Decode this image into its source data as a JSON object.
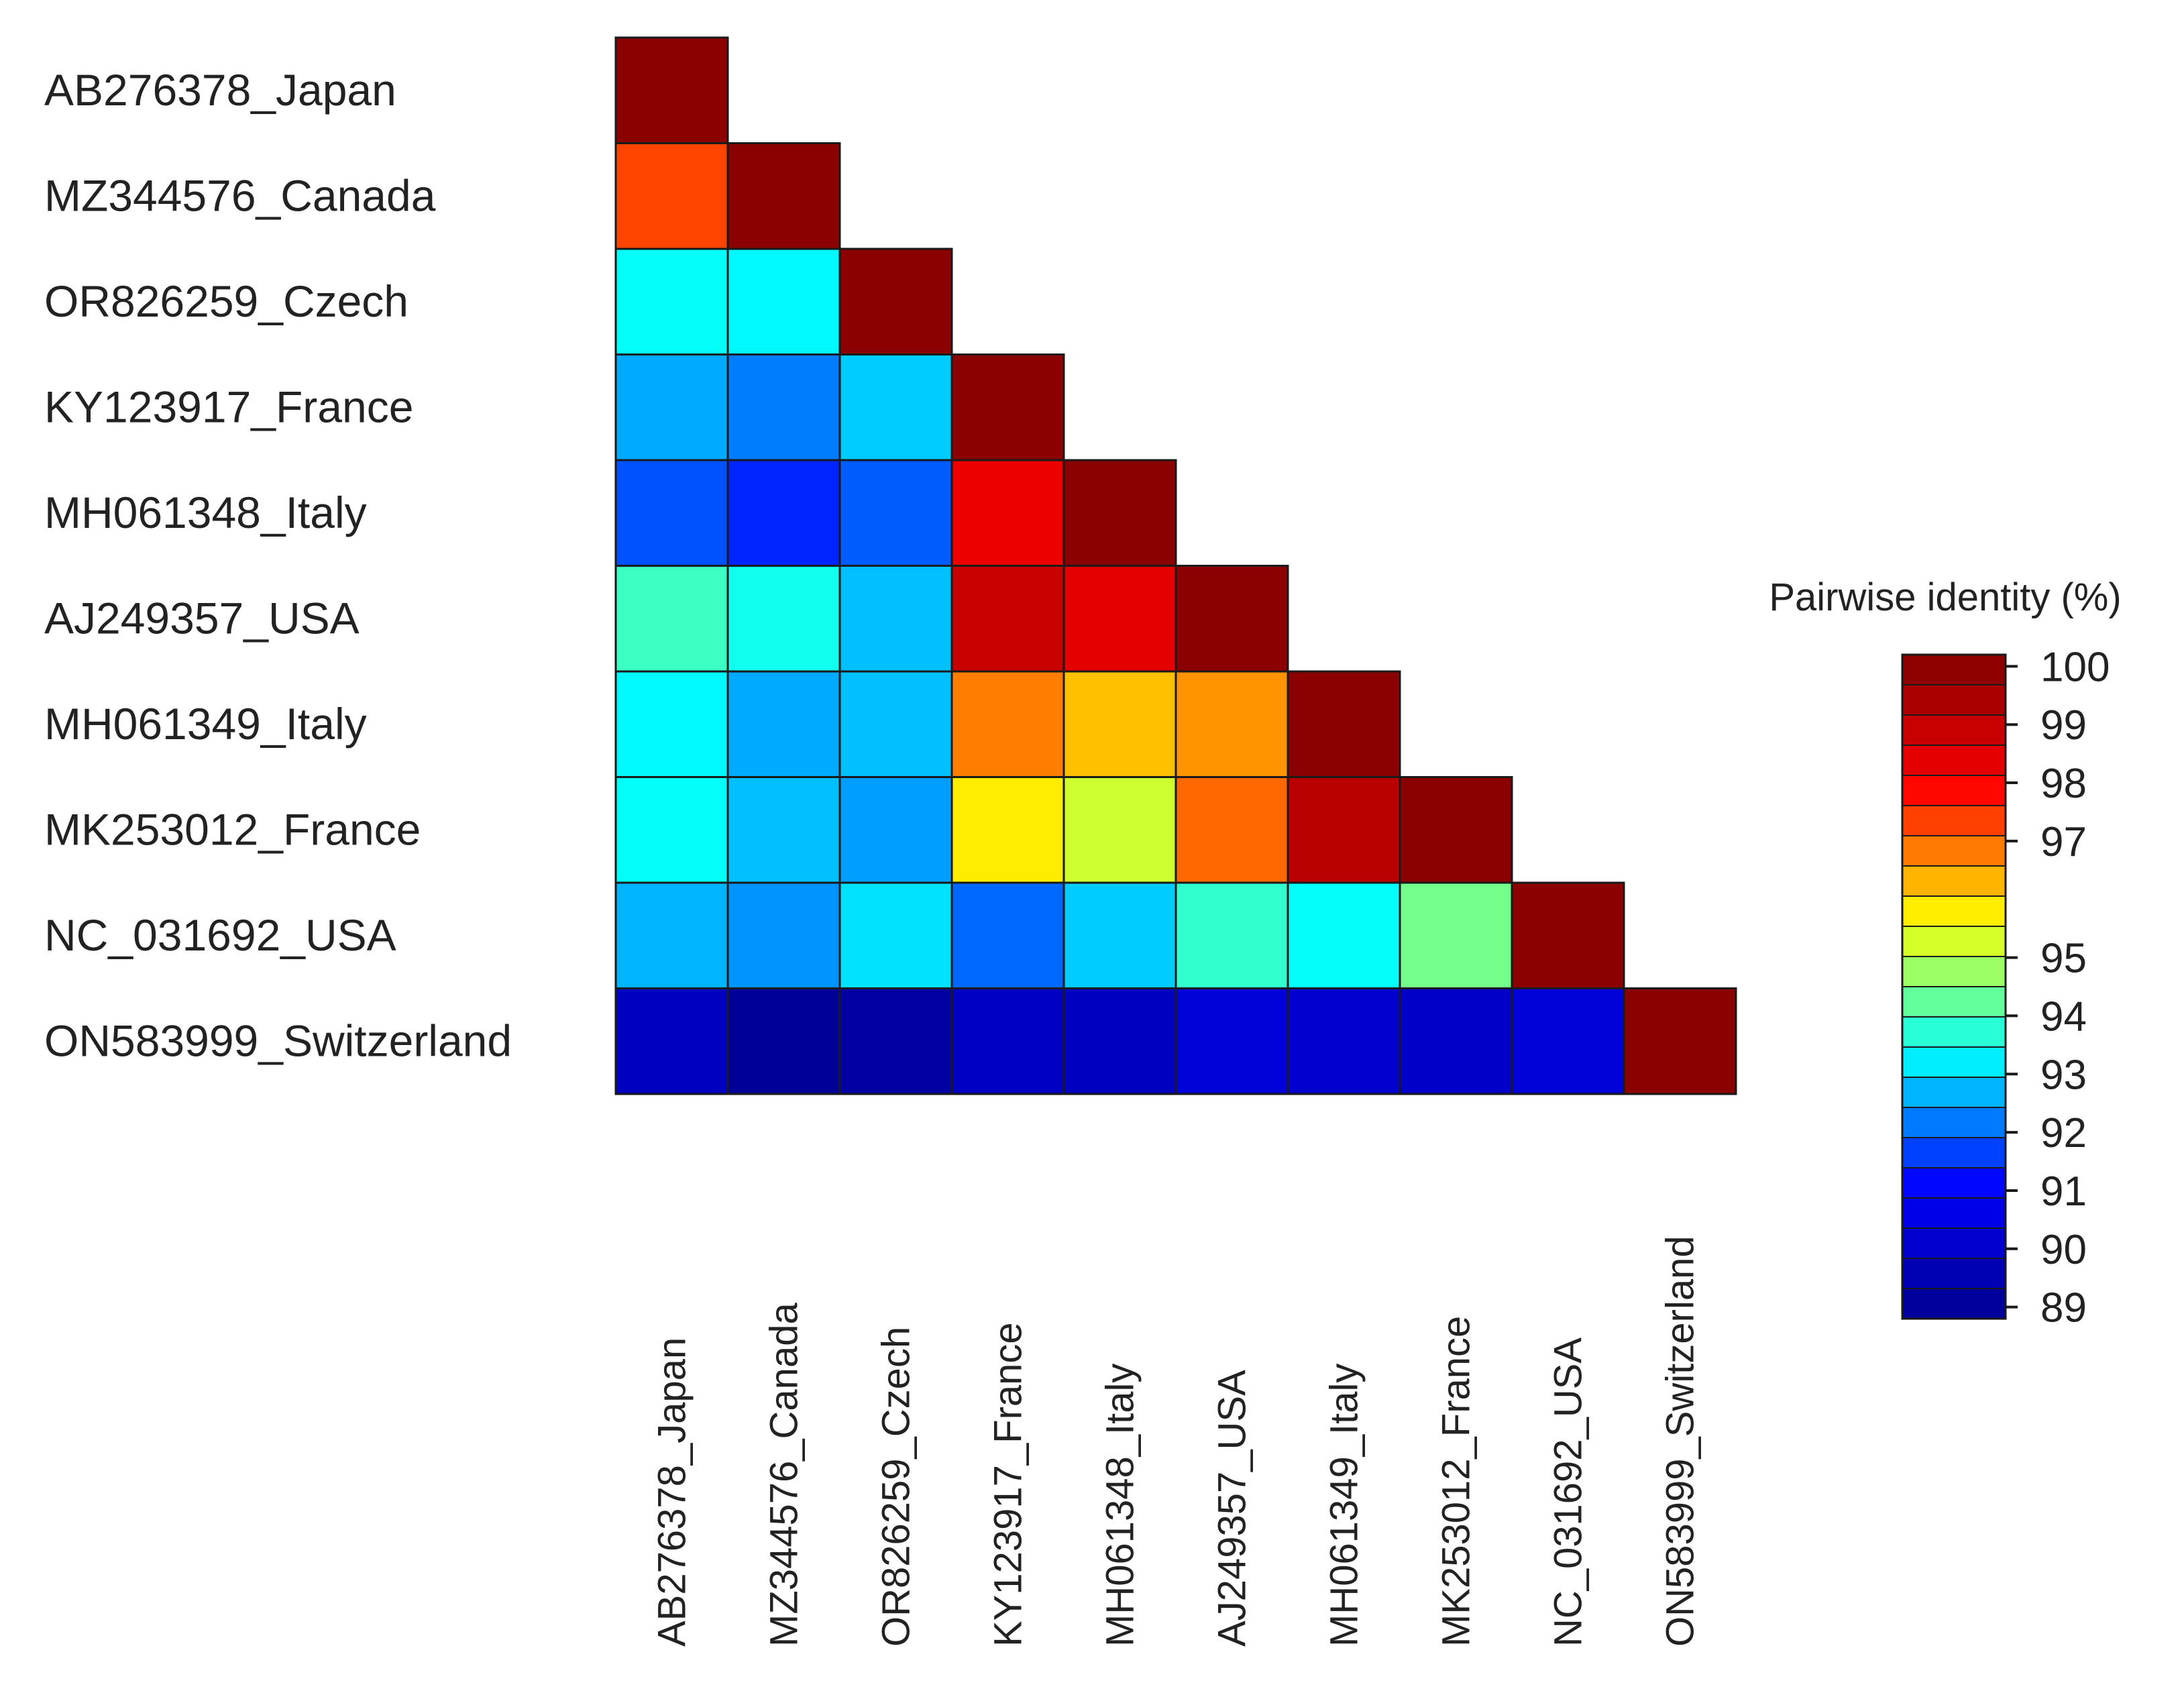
{
  "chart_data": {
    "type": "heatmap",
    "title": "",
    "labels": [
      "AB276378_Japan",
      "MZ344576_Canada",
      "OR826259_Czech",
      "KY123917_France",
      "MH061348_Italy",
      "AJ249357_USA",
      "MH061349_Italy",
      "MK253012_France",
      "NC_031692_USA",
      "ON583999_Switzerland"
    ],
    "matrix": [
      [
        100
      ],
      [
        97.3,
        100
      ],
      [
        93.4,
        93.3,
        100
      ],
      [
        92.6,
        92.2,
        92.9,
        100
      ],
      [
        91.8,
        91.4,
        91.9,
        98.2,
        100
      ],
      [
        93.9,
        93.5,
        92.8,
        98.9,
        98.4,
        100
      ],
      [
        93.3,
        92.6,
        92.8,
        96.8,
        96.2,
        96.6,
        100
      ],
      [
        93.4,
        92.8,
        92.5,
        95.8,
        95.2,
        97.0,
        99.2,
        100
      ],
      [
        92.7,
        92.4,
        93.1,
        92.0,
        92.9,
        93.8,
        93.4,
        94.4,
        100
      ],
      [
        89.8,
        89.0,
        89.2,
        89.9,
        89.8,
        90.3,
        90.1,
        90.0,
        90.3,
        100
      ]
    ],
    "colorbar": {
      "title": "Pairwise identity (%)",
      "min": 88.8,
      "max": 100.2,
      "ticks": [
        100,
        99,
        98,
        97,
        95,
        94,
        93,
        92,
        91,
        90,
        89
      ],
      "colors": [
        "#00008f",
        "#0000ff",
        "#00ffff",
        "#ffff00",
        "#ff0000",
        "#800000"
      ]
    }
  }
}
